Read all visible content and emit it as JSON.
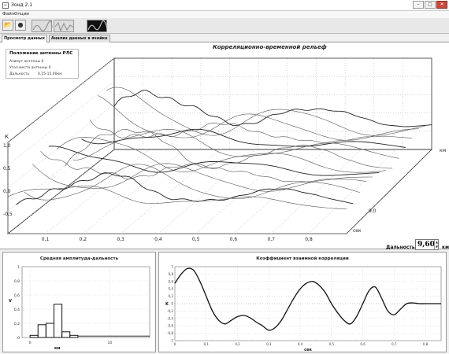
{
  "window": {
    "title": "Зонд 2.1"
  },
  "menu": {
    "items": [
      "Файл",
      "Опции"
    ]
  },
  "tabs": [
    "Просмотр данных",
    "Анализ данных в ячейке"
  ],
  "info": {
    "heading": "Положение антенны РЛС",
    "azimuth": "Азимут антенны 0",
    "elevation": "Угол места антенны 0",
    "range_label": "Дальность",
    "range_value": "0,15-15,00км"
  },
  "main_chart": {
    "title": "Корреляционно-временной рельеф",
    "z_axis_label": "К",
    "z_ticks": [
      "1,0",
      "0,5",
      "0,0",
      "-0,5"
    ],
    "x_ticks": [
      "0,1",
      "0,2",
      "0,3",
      "0,4",
      "0,5",
      "0,6",
      "0,7",
      "0,8"
    ],
    "x_unit": "сек",
    "depth_unit": "км",
    "depth_tick": "9,0"
  },
  "distance": {
    "label": "Дальность",
    "value": "9,60",
    "unit": "км"
  },
  "chart_data": [
    {
      "type": "bar",
      "title": "Средняя амплитуда-дальность",
      "ylabel": "V",
      "xlabel": "км",
      "x_ticks": [
        "0",
        "10"
      ],
      "y_ticks": [
        "0",
        "0,2",
        "0,4",
        "0,6",
        "0,8",
        "1"
      ],
      "ylim": [
        0,
        1
      ],
      "bins": [
        {
          "x0": 0,
          "x1": 1,
          "value": 0.03
        },
        {
          "x0": 1,
          "x1": 2,
          "value": 0.18
        },
        {
          "x0": 2,
          "x1": 3,
          "value": 0.2
        },
        {
          "x0": 3,
          "x1": 4,
          "value": 0.47
        },
        {
          "x0": 4,
          "x1": 5,
          "value": 0.08
        },
        {
          "x0": 5,
          "x1": 6,
          "value": 0.03
        }
      ],
      "xlim": [
        -1,
        15
      ]
    },
    {
      "type": "line",
      "title": "Коэффициент взаимной корреляции",
      "ylabel": "K",
      "xlabel": "сек",
      "xlim": [
        0,
        0.85
      ],
      "ylim": [
        -1,
        1
      ],
      "x_ticks": [
        "0",
        "0,1",
        "0,2",
        "0,3",
        "0,4",
        "0,5",
        "0,6",
        "0,7",
        "0,8"
      ],
      "y_ticks": [
        "1",
        "0,8",
        "0,6",
        "0,4",
        "0,2",
        "0",
        "-0,2",
        "-0,4",
        "-0,6",
        "-0,8",
        "-1"
      ],
      "x": [
        0,
        0.02,
        0.04,
        0.06,
        0.08,
        0.1,
        0.12,
        0.14,
        0.16,
        0.18,
        0.2,
        0.22,
        0.24,
        0.26,
        0.28,
        0.3,
        0.32,
        0.34,
        0.36,
        0.38,
        0.4,
        0.42,
        0.44,
        0.46,
        0.48,
        0.5,
        0.52,
        0.54,
        0.56,
        0.58,
        0.6,
        0.62,
        0.64,
        0.66,
        0.68,
        0.7,
        0.72,
        0.74,
        0.76,
        0.78,
        0.8,
        0.82,
        0.85
      ],
      "y": [
        0.55,
        0.8,
        0.95,
        0.9,
        0.6,
        0.2,
        -0.2,
        -0.45,
        -0.55,
        -0.45,
        -0.35,
        -0.32,
        -0.38,
        -0.5,
        -0.6,
        -0.72,
        -0.65,
        -0.45,
        -0.15,
        0.15,
        0.4,
        0.55,
        0.6,
        0.5,
        0.3,
        0.0,
        -0.25,
        -0.45,
        -0.55,
        -0.35,
        0.0,
        0.35,
        0.45,
        0.15,
        -0.2,
        -0.3,
        -0.15,
        0.0,
        0.02,
        0.0,
        0.0,
        0.0,
        0.0
      ]
    }
  ]
}
